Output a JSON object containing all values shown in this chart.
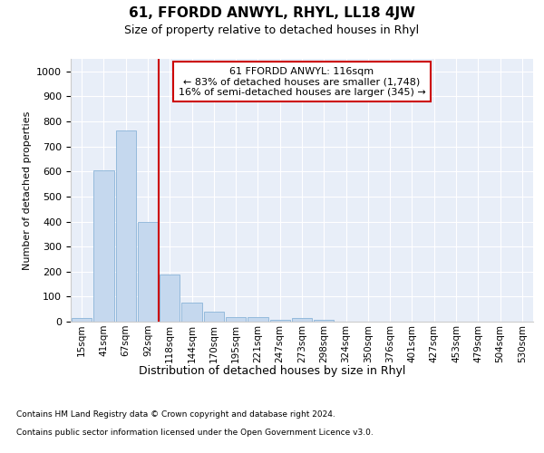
{
  "title": "61, FFORDD ANWYL, RHYL, LL18 4JW",
  "subtitle": "Size of property relative to detached houses in Rhyl",
  "xlabel": "Distribution of detached houses by size in Rhyl",
  "ylabel": "Number of detached properties",
  "footnote1": "Contains HM Land Registry data © Crown copyright and database right 2024.",
  "footnote2": "Contains public sector information licensed under the Open Government Licence v3.0.",
  "x_labels": [
    "15sqm",
    "41sqm",
    "67sqm",
    "92sqm",
    "118sqm",
    "144sqm",
    "170sqm",
    "195sqm",
    "221sqm",
    "247sqm",
    "273sqm",
    "298sqm",
    "324sqm",
    "350sqm",
    "376sqm",
    "401sqm",
    "427sqm",
    "453sqm",
    "479sqm",
    "504sqm",
    "530sqm"
  ],
  "bar_values": [
    15,
    605,
    765,
    400,
    190,
    75,
    40,
    18,
    18,
    8,
    15,
    8,
    0,
    0,
    0,
    0,
    0,
    0,
    0,
    0,
    0
  ],
  "bar_color": "#c5d8ee",
  "bar_edge_color": "#8ab4d8",
  "vline_index": 4,
  "vline_color": "#cc0000",
  "annotation_line1": "61 FFORDD ANWYL: 116sqm",
  "annotation_line2": "← 83% of detached houses are smaller (1,748)",
  "annotation_line3": "16% of semi-detached houses are larger (345) →",
  "annotation_box_facecolor": "#ffffff",
  "annotation_box_edgecolor": "#cc0000",
  "ylim": [
    0,
    1050
  ],
  "yticks": [
    0,
    100,
    200,
    300,
    400,
    500,
    600,
    700,
    800,
    900,
    1000
  ],
  "plot_bg_color": "#e8eef8",
  "fig_bg_color": "#ffffff",
  "title_fontsize": 11,
  "subtitle_fontsize": 9,
  "ylabel_fontsize": 8,
  "xlabel_fontsize": 9,
  "tick_fontsize": 8,
  "xtick_fontsize": 7.5,
  "footnote_fontsize": 6.5,
  "annotation_fontsize": 8
}
